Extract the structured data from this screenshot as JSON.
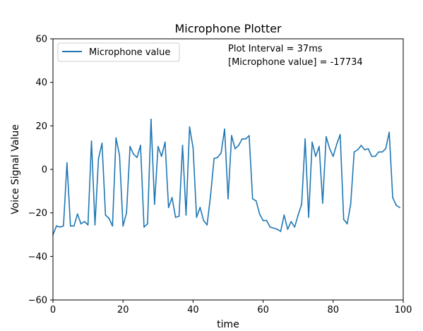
{
  "chart_data": {
    "type": "line",
    "title": "Microphone Plotter",
    "xlabel": "time",
    "ylabel": "Voice Signal Value",
    "xlim": [
      0,
      100
    ],
    "ylim": [
      -60,
      60
    ],
    "xticks": [
      0,
      20,
      40,
      60,
      80,
      100
    ],
    "yticks": [
      -60,
      -40,
      -20,
      0,
      20,
      40,
      60
    ],
    "grid": false,
    "legend": {
      "placement": "upper-left",
      "entries": [
        "Microphone value"
      ]
    },
    "annotations": {
      "interval": "Plot Interval = 37ms",
      "value": "[Microphone value] = -17734"
    },
    "series": [
      {
        "name": "Microphone value",
        "color": "#1f77b4",
        "x": [
          0,
          1,
          2,
          3,
          4,
          5,
          6,
          7,
          8,
          9,
          10,
          11,
          12,
          13,
          14,
          15,
          16,
          17,
          18,
          19,
          20,
          21,
          22,
          23,
          24,
          25,
          26,
          27,
          28,
          29,
          30,
          31,
          32,
          33,
          34,
          35,
          36,
          37,
          38,
          39,
          40,
          41,
          42,
          43,
          44,
          45,
          46,
          47,
          48,
          49,
          50,
          51,
          52,
          53,
          54,
          55,
          56,
          57,
          58,
          59,
          60,
          61,
          62,
          63,
          64,
          65,
          66,
          67,
          68,
          69,
          70,
          71,
          72,
          73,
          74,
          75,
          76,
          77,
          78,
          79,
          80,
          81,
          82,
          83,
          84,
          85,
          86,
          87,
          88,
          89,
          90,
          91,
          92,
          93,
          94,
          95,
          96,
          97,
          98,
          99
        ],
        "values": [
          -30,
          -26,
          -26.5,
          -26,
          3,
          -26,
          -26,
          -20.5,
          -25,
          -24,
          -25.5,
          13,
          -25.5,
          5,
          12,
          -21,
          -22.5,
          -26,
          14.5,
          6.5,
          -26,
          -20,
          10.5,
          7,
          5.5,
          11,
          -26.5,
          -25,
          23,
          -16,
          10.5,
          6,
          12.5,
          -17.5,
          -13,
          -22,
          -21.5,
          11,
          -21,
          19.5,
          10,
          -22,
          -17.5,
          -23.5,
          -25.5,
          -12,
          5,
          5.5,
          7.5,
          18.5,
          -13.5,
          15.5,
          9.5,
          11,
          14,
          14,
          15.5,
          -13.5,
          -14.5,
          -20.5,
          -23.5,
          -23.5,
          -26.5,
          -27,
          -27.5,
          -28.5,
          -21,
          -27.5,
          -24,
          -26.5,
          -21,
          -16,
          14,
          -22,
          12.5,
          6,
          10.5,
          -15.5,
          15,
          9.5,
          6,
          11.5,
          16,
          -23,
          -25,
          -16,
          8,
          9,
          11,
          9,
          9.5,
          6,
          6,
          8,
          8,
          9.5,
          17,
          -13,
          -16.5,
          -17.5
        ]
      }
    ]
  }
}
